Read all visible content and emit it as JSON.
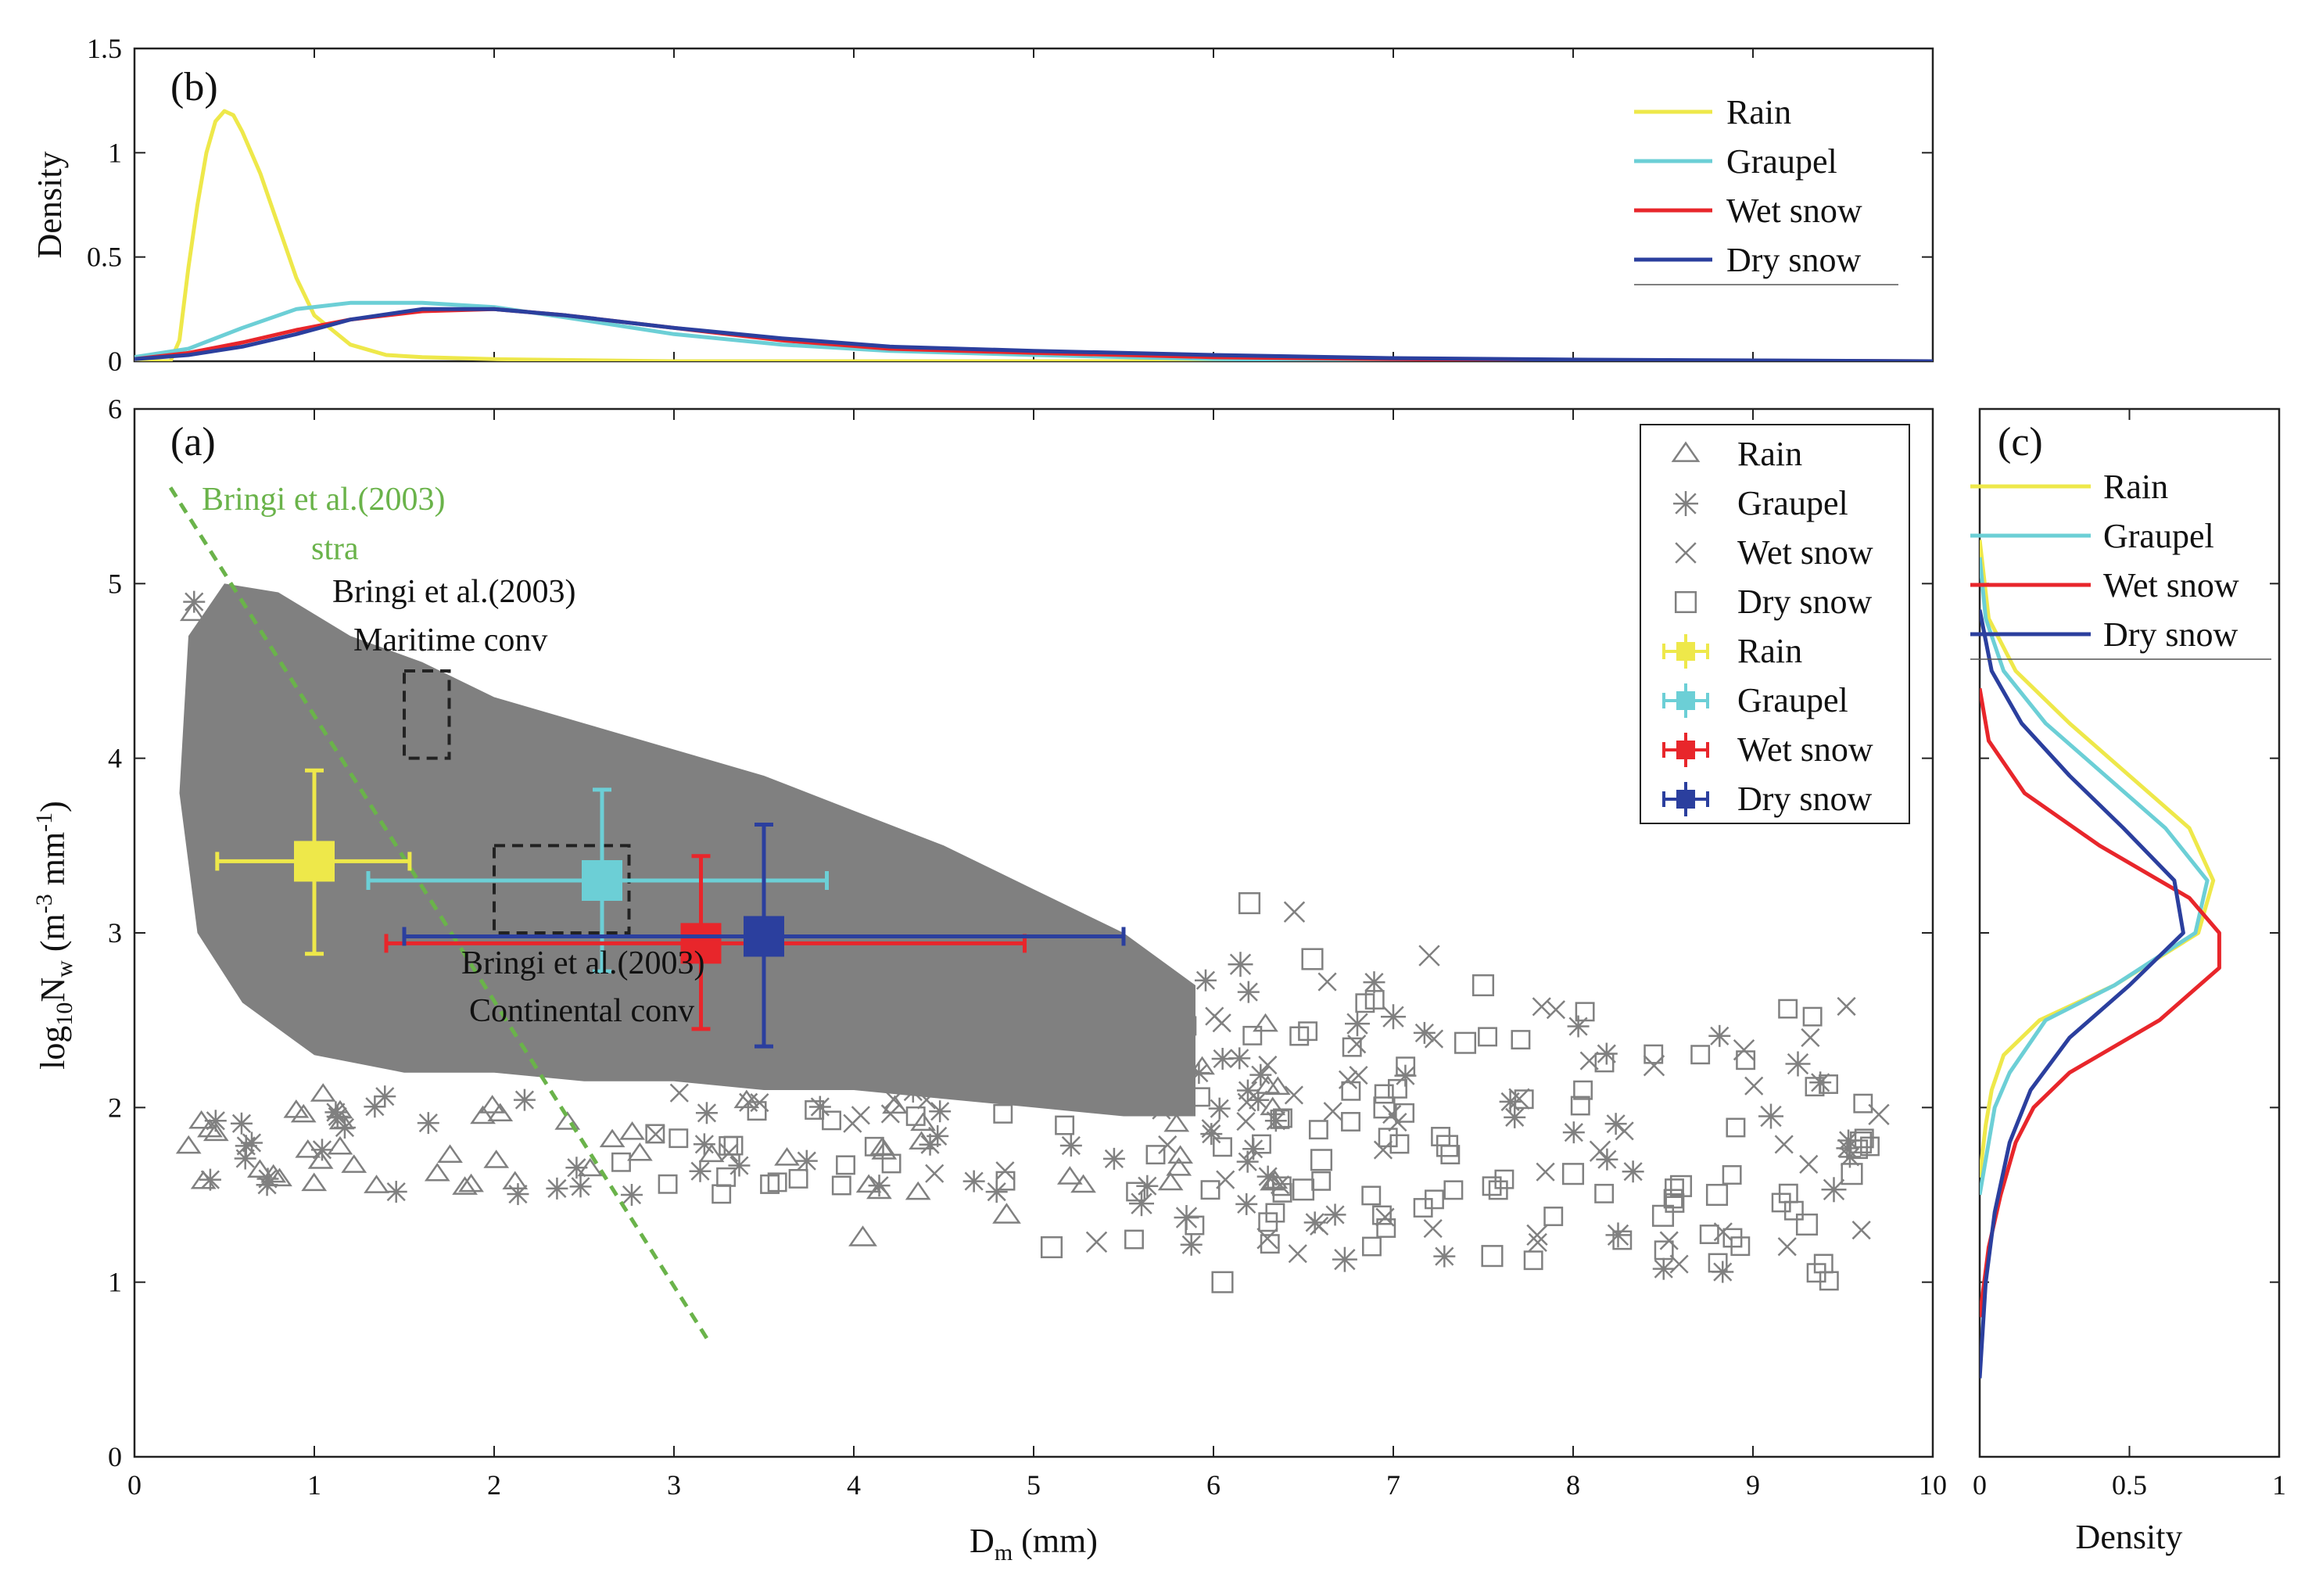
{
  "panels": {
    "a": {
      "label": "(a)"
    },
    "b": {
      "label": "(b)"
    },
    "c": {
      "label": "(c)"
    }
  },
  "axes": {
    "a": {
      "xlabel_main": "D",
      "xlabel_sub": "m",
      "xlabel_unit": " (mm)",
      "ylabel_log": "log",
      "ylabel_logsub": "10",
      "ylabel_n": "N",
      "ylabel_nsub": "w",
      "ylabel_unit_a": " (m",
      "ylabel_exp1": "-3",
      "ylabel_unit_b": " mm",
      "ylabel_exp2": "-1",
      "ylabel_unit_c": ")",
      "xlim": [
        0,
        10
      ],
      "ylim": [
        0,
        6
      ],
      "xticks": [
        "0",
        "1",
        "2",
        "3",
        "4",
        "5",
        "6",
        "7",
        "8",
        "9",
        "10"
      ],
      "yticks": [
        "0",
        "1",
        "2",
        "3",
        "4",
        "5",
        "6"
      ]
    },
    "b": {
      "ylabel": "Density",
      "ylim": [
        0,
        1.5
      ],
      "yticks": [
        "0",
        "0.5",
        "1",
        "1.5"
      ]
    },
    "c": {
      "xlabel": "Density",
      "xlim": [
        0,
        1
      ],
      "xticks": [
        "0",
        "0.5",
        "1"
      ]
    }
  },
  "legend_a": {
    "markers": [
      "Rain",
      "Graupel",
      "Wet snow",
      "Dry snow"
    ],
    "errorbars": [
      "Rain",
      "Graupel",
      "Wet snow",
      "Dry snow"
    ]
  },
  "legend_b": [
    "Rain",
    "Graupel",
    "Wet snow",
    "Dry snow"
  ],
  "legend_c": [
    "Rain",
    "Graupel",
    "Wet snow",
    "Dry snow"
  ],
  "annotations": {
    "stra_line1": "Bringi et al.(2003)",
    "stra_line2": "stra",
    "maritime_line1": "Bringi et al.(2003)",
    "maritime_line2": "Maritime conv",
    "continental_line1": "Bringi et al.(2003)",
    "continental_line2": "Continental conv"
  },
  "colors": {
    "rain": "#eee84a",
    "graupel": "#6ccfd6",
    "wet_snow": "#e8262b",
    "dry_snow": "#2b3f9e",
    "scatter": "#808080",
    "stra_line": "#6ab34a"
  },
  "chart_data": [
    {
      "panel": "a",
      "type": "scatter",
      "xlabel": "Dm (mm)",
      "ylabel": "log10Nw (m-3 mm-1)",
      "xlim": [
        0,
        10
      ],
      "ylim": [
        0,
        6
      ],
      "mean_std": [
        {
          "name": "Rain",
          "x": 1.0,
          "y": 3.41,
          "xerr": [
            0.46,
            1.53
          ],
          "yerr": [
            2.88,
            3.93
          ]
        },
        {
          "name": "Graupel",
          "x": 2.6,
          "y": 3.3,
          "xerr": [
            1.3,
            3.85
          ],
          "yerr": [
            2.78,
            3.82
          ]
        },
        {
          "name": "Wet snow",
          "x": 3.15,
          "y": 2.94,
          "xerr": [
            1.4,
            4.95
          ],
          "yerr": [
            2.45,
            3.44
          ]
        },
        {
          "name": "Dry snow",
          "x": 3.5,
          "y": 2.98,
          "xerr": [
            1.5,
            5.5
          ],
          "yerr": [
            2.35,
            3.62
          ]
        }
      ],
      "reference_line": {
        "x": [
          0.2,
          3.2
        ],
        "y": [
          5.55,
          0.65
        ]
      },
      "reference_boxes": [
        {
          "x": [
            1.5,
            1.75
          ],
          "y": [
            4.0,
            4.5
          ]
        },
        {
          "x": [
            2.0,
            2.75
          ],
          "y": [
            3.0,
            3.5
          ]
        }
      ],
      "outlier_points": [
        {
          "x": 6.05,
          "y": 1.0
        },
        {
          "x": 6.3,
          "y": 1.25
        },
        {
          "x": 6.73,
          "y": 1.13
        },
        {
          "x": 4.05,
          "y": 1.25
        },
        {
          "x": 5.1,
          "y": 1.2
        },
        {
          "x": 5.35,
          "y": 1.23
        },
        {
          "x": 5.85,
          "y": 1.37
        },
        {
          "x": 6.5,
          "y": 1.53
        },
        {
          "x": 6.6,
          "y": 1.7
        },
        {
          "x": 7.2,
          "y": 2.87
        },
        {
          "x": 7.0,
          "y": 2.52
        },
        {
          "x": 7.5,
          "y": 2.7
        },
        {
          "x": 7.55,
          "y": 1.15
        },
        {
          "x": 7.8,
          "y": 1.27
        },
        {
          "x": 8.25,
          "y": 1.27
        },
        {
          "x": 8.5,
          "y": 1.38
        },
        {
          "x": 8.6,
          "y": 1.55
        },
        {
          "x": 8.95,
          "y": 2.33
        },
        {
          "x": 9.25,
          "y": 2.25
        },
        {
          "x": 9.3,
          "y": 1.33
        },
        {
          "x": 9.6,
          "y": 1.8
        },
        {
          "x": 9.7,
          "y": 1.96
        },
        {
          "x": 9.45,
          "y": 1.53
        },
        {
          "x": 8.8,
          "y": 1.5
        },
        {
          "x": 8.0,
          "y": 1.62
        },
        {
          "x": 7.7,
          "y": 2.05
        },
        {
          "x": 6.8,
          "y": 2.48
        },
        {
          "x": 6.95,
          "y": 2.0
        },
        {
          "x": 7.3,
          "y": 1.78
        },
        {
          "x": 8.45,
          "y": 2.24
        },
        {
          "x": 9.1,
          "y": 1.95
        },
        {
          "x": 9.55,
          "y": 1.62
        },
        {
          "x": 6.2,
          "y": 3.17
        },
        {
          "x": 6.45,
          "y": 3.12
        },
        {
          "x": 6.15,
          "y": 2.82
        },
        {
          "x": 6.55,
          "y": 2.85
        },
        {
          "x": 7.4,
          "y": 2.37
        },
        {
          "x": 8.15,
          "y": 1.75
        },
        {
          "x": 5.6,
          "y": 1.45
        },
        {
          "x": 4.85,
          "y": 1.38
        }
      ]
    },
    {
      "panel": "b",
      "type": "line",
      "ylabel": "Density",
      "xlim": [
        0,
        10
      ],
      "ylim": [
        0,
        1.5
      ],
      "series": [
        {
          "name": "Rain",
          "x": [
            0,
            0.2,
            0.25,
            0.3,
            0.35,
            0.4,
            0.45,
            0.5,
            0.55,
            0.6,
            0.7,
            0.8,
            0.9,
            1.0,
            1.2,
            1.4,
            1.6,
            2.0,
            3.0,
            10
          ],
          "y": [
            0,
            0,
            0.1,
            0.45,
            0.75,
            1.0,
            1.15,
            1.2,
            1.18,
            1.1,
            0.9,
            0.65,
            0.4,
            0.22,
            0.08,
            0.03,
            0.02,
            0.01,
            0,
            0
          ]
        },
        {
          "name": "Graupel",
          "x": [
            0,
            0.3,
            0.6,
            0.9,
            1.2,
            1.6,
            2.0,
            2.4,
            3.0,
            3.6,
            4.2,
            5,
            6,
            7,
            8,
            10
          ],
          "y": [
            0.02,
            0.06,
            0.16,
            0.25,
            0.28,
            0.28,
            0.26,
            0.21,
            0.13,
            0.08,
            0.05,
            0.03,
            0.01,
            0.005,
            0.003,
            0
          ]
        },
        {
          "name": "Wet snow",
          "x": [
            0,
            0.3,
            0.6,
            0.9,
            1.2,
            1.6,
            2.0,
            2.4,
            3.0,
            3.6,
            4.2,
            5,
            6,
            7,
            8,
            10
          ],
          "y": [
            0.01,
            0.04,
            0.09,
            0.15,
            0.2,
            0.24,
            0.25,
            0.22,
            0.16,
            0.1,
            0.06,
            0.04,
            0.02,
            0.01,
            0.005,
            0
          ]
        },
        {
          "name": "Dry snow",
          "x": [
            0,
            0.3,
            0.6,
            0.9,
            1.2,
            1.6,
            2.0,
            2.4,
            3.0,
            3.6,
            4.2,
            5,
            6,
            7,
            8,
            10
          ],
          "y": [
            0.01,
            0.03,
            0.07,
            0.13,
            0.2,
            0.25,
            0.25,
            0.22,
            0.16,
            0.11,
            0.07,
            0.05,
            0.03,
            0.015,
            0.008,
            0
          ]
        }
      ]
    },
    {
      "panel": "c",
      "type": "line",
      "xlabel": "Density",
      "xlim": [
        0,
        1
      ],
      "ylim": [
        0,
        6
      ],
      "series": [
        {
          "name": "Rain",
          "y": [
            1.6,
            1.9,
            2.1,
            2.3,
            2.5,
            2.7,
            3.0,
            3.3,
            3.6,
            3.9,
            4.2,
            4.5,
            4.8,
            5.25
          ],
          "x": [
            0,
            0.02,
            0.04,
            0.08,
            0.2,
            0.45,
            0.73,
            0.78,
            0.7,
            0.5,
            0.3,
            0.12,
            0.03,
            0
          ]
        },
        {
          "name": "Graupel",
          "y": [
            1.5,
            1.8,
            2.0,
            2.2,
            2.5,
            2.7,
            3.0,
            3.3,
            3.6,
            3.9,
            4.2,
            4.5,
            4.8,
            5.15
          ],
          "x": [
            0,
            0.03,
            0.05,
            0.1,
            0.22,
            0.45,
            0.72,
            0.76,
            0.62,
            0.42,
            0.22,
            0.08,
            0.02,
            0
          ]
        },
        {
          "name": "Wet snow",
          "y": [
            0.8,
            1.2,
            1.5,
            1.8,
            2.0,
            2.2,
            2.5,
            2.8,
            3.0,
            3.2,
            3.5,
            3.8,
            4.1,
            4.4
          ],
          "x": [
            0,
            0.03,
            0.07,
            0.12,
            0.18,
            0.3,
            0.6,
            0.8,
            0.8,
            0.7,
            0.4,
            0.15,
            0.03,
            0
          ]
        },
        {
          "name": "Dry snow",
          "y": [
            0.45,
            1.0,
            1.4,
            1.8,
            2.1,
            2.4,
            2.7,
            3.0,
            3.3,
            3.6,
            3.9,
            4.2,
            4.5,
            4.85
          ],
          "x": [
            0,
            0.02,
            0.05,
            0.1,
            0.17,
            0.3,
            0.5,
            0.68,
            0.65,
            0.48,
            0.3,
            0.14,
            0.04,
            0
          ]
        }
      ]
    }
  ]
}
